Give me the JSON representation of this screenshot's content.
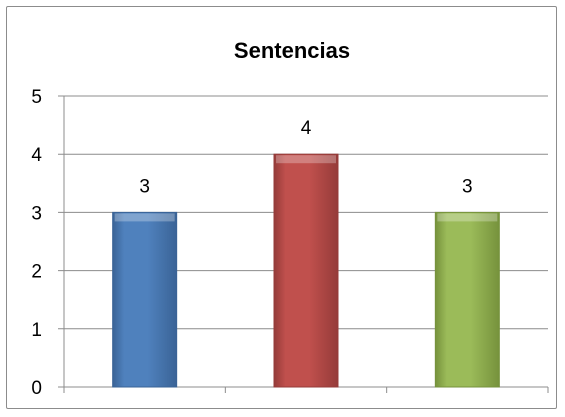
{
  "chart_data": {
    "type": "bar",
    "title": "Sentencias",
    "categories": [
      "",
      "",
      ""
    ],
    "values": [
      3,
      4,
      3
    ],
    "data_labels": [
      "3",
      "4",
      "3"
    ],
    "xlabel": "",
    "ylabel": "",
    "ylim": [
      0,
      5
    ],
    "yticks": [
      "0",
      "1",
      "2",
      "3",
      "4",
      "5"
    ],
    "grid": true,
    "legend": "none",
    "bar_colors": [
      "#4f81bd",
      "#c0504d",
      "#9bbb59"
    ],
    "bar_edge_colors": [
      "#3a6396",
      "#953b39",
      "#76923c"
    ]
  }
}
